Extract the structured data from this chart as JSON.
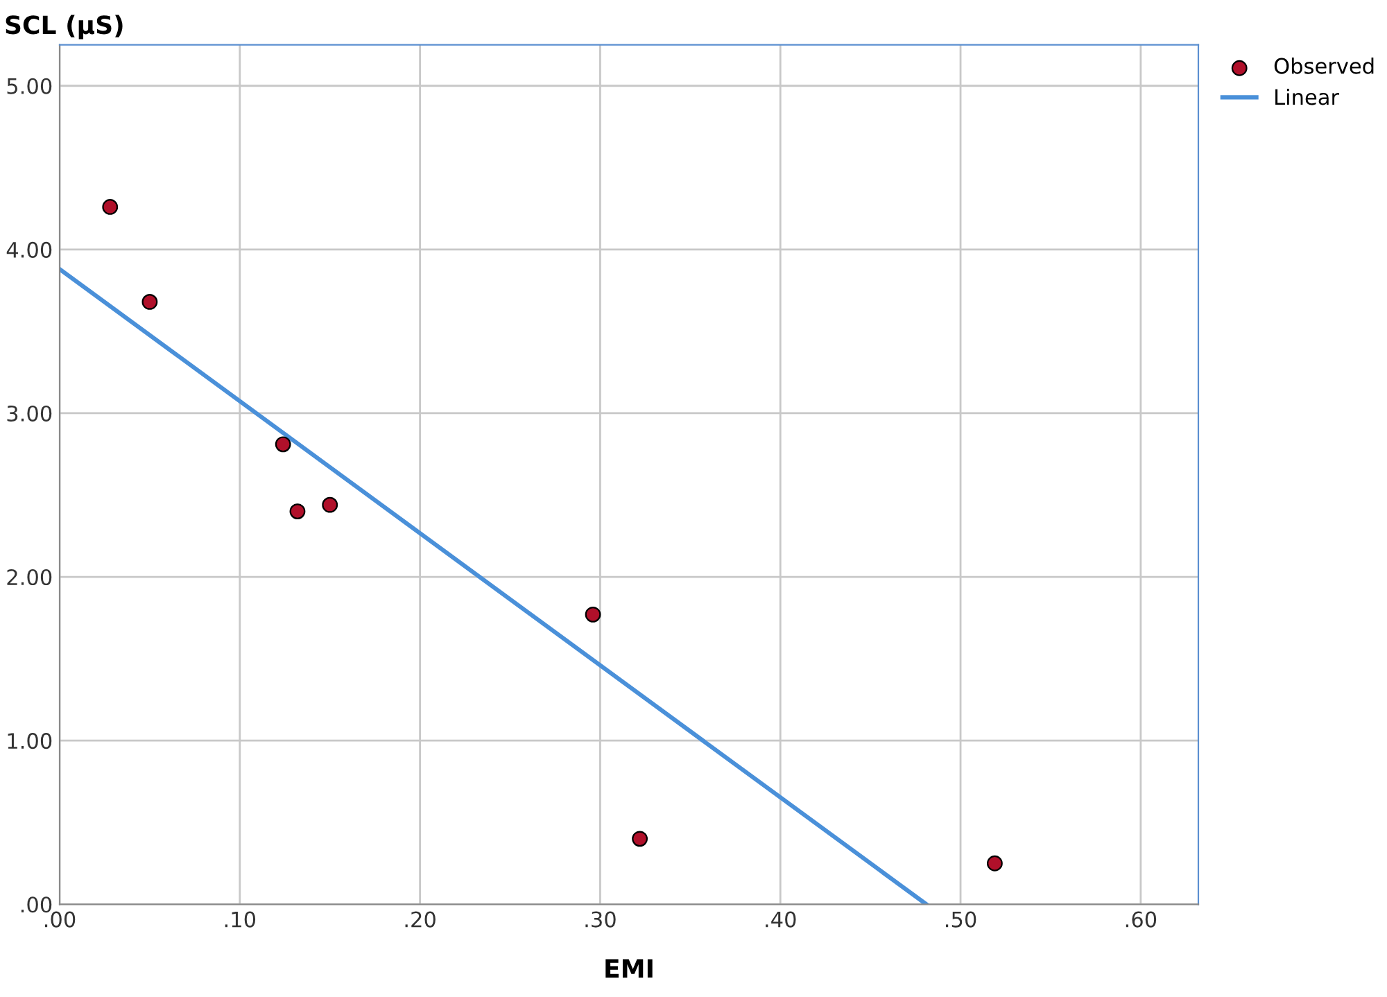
{
  "chart_data": {
    "type": "scatter",
    "xlabel": "EMI",
    "ylabel": "SCL (μS)",
    "xlim": [
      0,
      0.632
    ],
    "ylim": [
      0,
      5.25
    ],
    "xticks": [
      {
        "value": 0,
        "label": ".00"
      },
      {
        "value": 0.1,
        "label": ".10"
      },
      {
        "value": 0.2,
        "label": ".20"
      },
      {
        "value": 0.3,
        "label": ".30"
      },
      {
        "value": 0.4,
        "label": ".40"
      },
      {
        "value": 0.5,
        "label": ".50"
      },
      {
        "value": 0.6,
        "label": ".60"
      }
    ],
    "yticks": [
      {
        "value": 0,
        "label": ".00"
      },
      {
        "value": 1,
        "label": "1.00"
      },
      {
        "value": 2,
        "label": "2.00"
      },
      {
        "value": 3,
        "label": "3.00"
      },
      {
        "value": 4,
        "label": "4.00"
      },
      {
        "value": 5,
        "label": "5.00"
      }
    ],
    "grid": true,
    "legend": "top right",
    "series": [
      {
        "name": "Observed",
        "marker": "circle",
        "color": "#b0102a",
        "x": [
          0.028,
          0.05,
          0.124,
          0.132,
          0.15,
          0.296,
          0.322,
          0.519
        ],
        "values": [
          4.26,
          3.68,
          2.81,
          2.4,
          2.44,
          1.77,
          0.4,
          0.25
        ]
      },
      {
        "name": "Linear",
        "type": "line",
        "marker": "none",
        "line_style": "solid",
        "color": "#4a90d9",
        "x": [
          0,
          0.481
        ],
        "values": [
          3.88,
          0
        ]
      }
    ]
  }
}
